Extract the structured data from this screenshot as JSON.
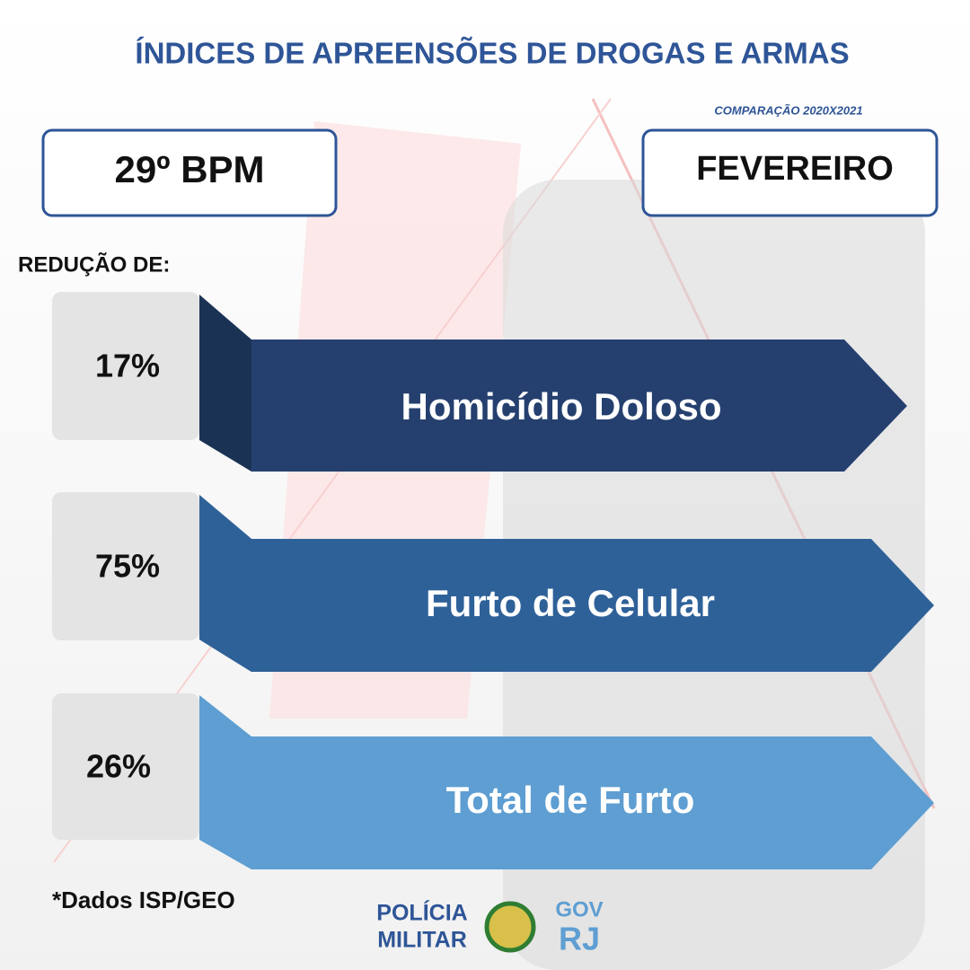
{
  "header": {
    "title": "ÍNDICES DE APREENSÕES DE DROGAS E ARMAS",
    "subtitle": "COMPARAÇÃO 2020X2021"
  },
  "unit": "29º BPM",
  "month": "FEVEREIRO",
  "intro": "REDUÇÃO DE:",
  "items": [
    {
      "value": "17%",
      "label": "Homicídio Doloso"
    },
    {
      "value": "75%",
      "label": "Furto de Celular"
    },
    {
      "value": "26%",
      "label": "Total de Furto"
    }
  ],
  "footnote": "*Dados ISP/GEO",
  "logo": {
    "line1": "POLÍCIA",
    "line2": "MILITAR",
    "gov": "GOV",
    "state": "RJ"
  }
}
